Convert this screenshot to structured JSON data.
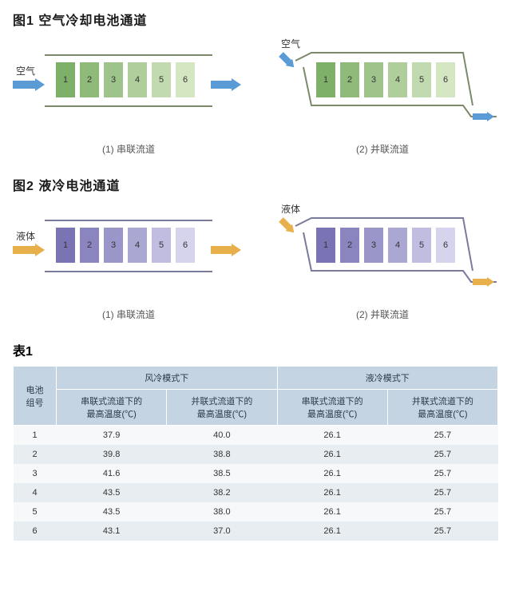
{
  "fig1": {
    "title": "图1  空气冷却电池通道",
    "flow_label": "空气",
    "arrow_color": "#5b9bd5",
    "cell_colors": [
      "#7fb069",
      "#8fba7a",
      "#9fc48b",
      "#afce9c",
      "#c2daaf",
      "#d5e6c2"
    ],
    "cell_labels": [
      "1",
      "2",
      "3",
      "4",
      "5",
      "6"
    ],
    "caption_left": "(1) 串联流道",
    "caption_right": "(2) 并联流道",
    "line_color": "#7a8a6a"
  },
  "fig2": {
    "title": "图2 液冷电池通道",
    "flow_label": "液体",
    "arrow_color": "#e8b04a",
    "cell_colors": [
      "#7a74b5",
      "#8a85bf",
      "#9a96c9",
      "#aaa7d3",
      "#c0bde0",
      "#d6d4ec"
    ],
    "cell_labels": [
      "1",
      "2",
      "3",
      "4",
      "5",
      "6"
    ],
    "caption_left": "(1) 串联流道",
    "caption_right": "(2) 并联流道",
    "line_color": "#7a7a9a"
  },
  "table": {
    "title": "表1",
    "row_header": "电池\n组号",
    "group_headers": [
      "风冷模式下",
      "液冷模式下"
    ],
    "sub_headers": [
      "串联式流道下的\n最高温度(℃)",
      "并联式流道下的\n最高温度(℃)",
      "串联式流道下的\n最高温度(℃)",
      "并联式流道下的\n最高温度(℃)"
    ],
    "rows": [
      {
        "id": "1",
        "v": [
          "37.9",
          "40.0",
          "26.1",
          "25.7"
        ]
      },
      {
        "id": "2",
        "v": [
          "39.8",
          "38.8",
          "26.1",
          "25.7"
        ]
      },
      {
        "id": "3",
        "v": [
          "41.6",
          "38.5",
          "26.1",
          "25.7"
        ]
      },
      {
        "id": "4",
        "v": [
          "43.5",
          "38.2",
          "26.1",
          "25.7"
        ]
      },
      {
        "id": "5",
        "v": [
          "43.5",
          "38.0",
          "26.1",
          "25.7"
        ]
      },
      {
        "id": "6",
        "v": [
          "43.1",
          "37.0",
          "26.1",
          "25.7"
        ]
      }
    ],
    "header_bg": "#c5d4e3",
    "row_alt_bg": "#e8edf2"
  }
}
